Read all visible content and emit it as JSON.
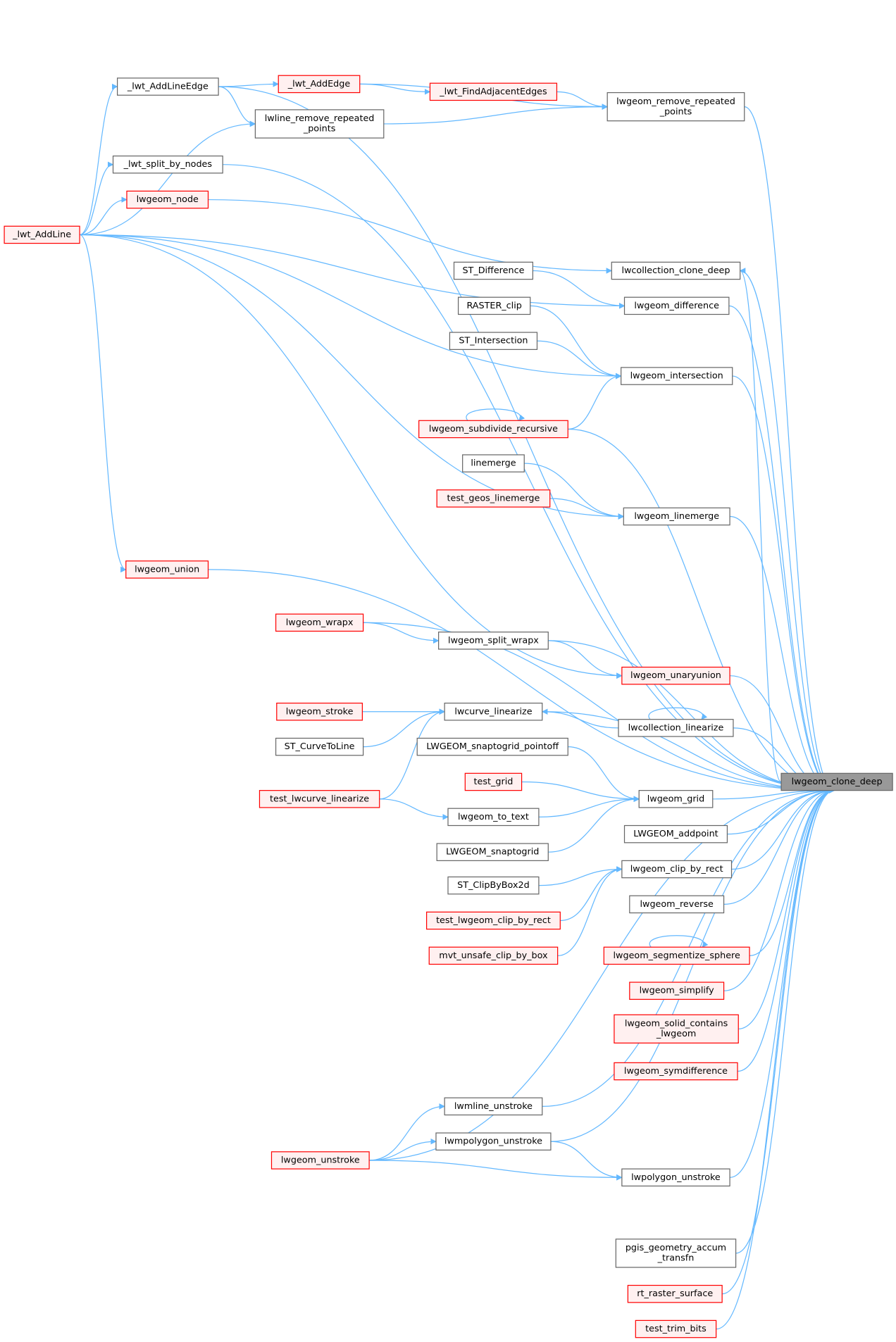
{
  "nodes": [
    {
      "lines": [
        "_lwt_AddLineEdge"
      ],
      "style": "normal"
    },
    {
      "lines": [
        "_lwt_AddEdge"
      ],
      "style": "truncated"
    },
    {
      "lines": [
        "_lwt_FindAdjacentEdges"
      ],
      "style": "truncated"
    },
    {
      "lines": [
        "lwgeom_remove_repeated",
        "_points"
      ],
      "style": "normal"
    },
    {
      "lines": [
        "lwline_remove_repeated",
        "_points"
      ],
      "style": "normal"
    },
    {
      "lines": [
        "_lwt_split_by_nodes"
      ],
      "style": "normal"
    },
    {
      "lines": [
        "lwgeom_node"
      ],
      "style": "truncated"
    },
    {
      "lines": [
        "_lwt_AddLine"
      ],
      "style": "truncated"
    },
    {
      "lines": [
        "lwcollection_clone_deep"
      ],
      "style": "normal"
    },
    {
      "lines": [
        "ST_Difference"
      ],
      "style": "normal"
    },
    {
      "lines": [
        "lwgeom_difference"
      ],
      "style": "normal"
    },
    {
      "lines": [
        "RASTER_clip"
      ],
      "style": "normal"
    },
    {
      "lines": [
        "ST_Intersection"
      ],
      "style": "normal"
    },
    {
      "lines": [
        "lwgeom_intersection"
      ],
      "style": "normal"
    },
    {
      "lines": [
        "lwgeom_subdivide_recursive"
      ],
      "style": "truncated"
    },
    {
      "lines": [
        "linemerge"
      ],
      "style": "normal"
    },
    {
      "lines": [
        "test_geos_linemerge"
      ],
      "style": "truncated"
    },
    {
      "lines": [
        "lwgeom_linemerge"
      ],
      "style": "normal"
    },
    {
      "lines": [
        "lwgeom_union"
      ],
      "style": "truncated"
    },
    {
      "lines": [
        "lwgeom_wrapx"
      ],
      "style": "truncated"
    },
    {
      "lines": [
        "lwgeom_split_wrapx"
      ],
      "style": "normal"
    },
    {
      "lines": [
        "lwgeom_unaryunion"
      ],
      "style": "truncated"
    },
    {
      "lines": [
        "lwgeom_stroke"
      ],
      "style": "truncated"
    },
    {
      "lines": [
        "lwcurve_linearize"
      ],
      "style": "normal"
    },
    {
      "lines": [
        "lwcollection_linearize"
      ],
      "style": "normal"
    },
    {
      "lines": [
        "ST_CurveToLine"
      ],
      "style": "normal"
    },
    {
      "lines": [
        "LWGEOM_snaptogrid_pointoff"
      ],
      "style": "normal"
    },
    {
      "lines": [
        "test_grid"
      ],
      "style": "truncated"
    },
    {
      "lines": [
        "lwgeom_grid"
      ],
      "style": "normal"
    },
    {
      "lines": [
        "lwgeom_clone_deep"
      ],
      "style": "root"
    },
    {
      "lines": [
        "test_lwcurve_linearize"
      ],
      "style": "truncated"
    },
    {
      "lines": [
        "lwgeom_to_text"
      ],
      "style": "normal"
    },
    {
      "lines": [
        "LWGEOM_snaptogrid"
      ],
      "style": "normal"
    },
    {
      "lines": [
        "LWGEOM_addpoint"
      ],
      "style": "normal"
    },
    {
      "lines": [
        "lwgeom_clip_by_rect"
      ],
      "style": "normal"
    },
    {
      "lines": [
        "ST_ClipByBox2d"
      ],
      "style": "normal"
    },
    {
      "lines": [
        "lwgeom_reverse"
      ],
      "style": "normal"
    },
    {
      "lines": [
        "test_lwgeom_clip_by_rect"
      ],
      "style": "truncated"
    },
    {
      "lines": [
        "mvt_unsafe_clip_by_box"
      ],
      "style": "truncated"
    },
    {
      "lines": [
        "lwgeom_segmentize_sphere"
      ],
      "style": "truncated"
    },
    {
      "lines": [
        "lwgeom_simplify"
      ],
      "style": "truncated"
    },
    {
      "lines": [
        "lwgeom_solid_contains",
        "_lwgeom"
      ],
      "style": "truncated"
    },
    {
      "lines": [
        "lwgeom_symdifference"
      ],
      "style": "truncated"
    },
    {
      "lines": [
        "lwmline_unstroke"
      ],
      "style": "normal"
    },
    {
      "lines": [
        "lwmpolygon_unstroke"
      ],
      "style": "normal"
    },
    {
      "lines": [
        "lwgeom_unstroke"
      ],
      "style": "truncated"
    },
    {
      "lines": [
        "lwpolygon_unstroke"
      ],
      "style": "normal"
    },
    {
      "lines": [
        "pgis_geometry_accum",
        "_transfn"
      ],
      "style": "normal"
    },
    {
      "lines": [
        "rt_raster_surface"
      ],
      "style": "truncated"
    },
    {
      "lines": [
        "test_trim_bits"
      ],
      "style": "truncated"
    }
  ]
}
